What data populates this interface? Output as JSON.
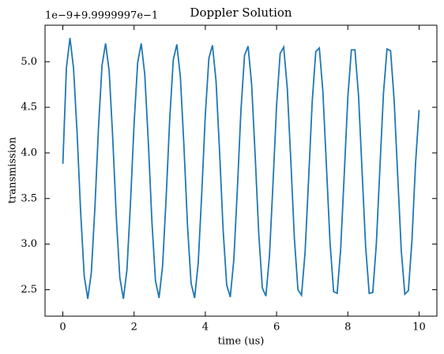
{
  "chart_data": {
    "type": "line",
    "title": "Doppler Solution",
    "x_label": "time (us)",
    "y_label": "transmission",
    "offset_text": "1e−9+9.9999997e−1",
    "color": "#1f77b4",
    "x": [
      0,
      0.1,
      0.2,
      0.3,
      0.4,
      0.5,
      0.6,
      0.7,
      0.8,
      0.9,
      1,
      1.1,
      1.2,
      1.3,
      1.4,
      1.5,
      1.6,
      1.7,
      1.8,
      1.9,
      2,
      2.1,
      2.2,
      2.3,
      2.4,
      2.5,
      2.6,
      2.7,
      2.8,
      2.9,
      3,
      3.1,
      3.2,
      3.3,
      3.4,
      3.5,
      3.6,
      3.7,
      3.8,
      3.9,
      4,
      4.1,
      4.2,
      4.3,
      4.4,
      4.5,
      4.6,
      4.7,
      4.8,
      4.9,
      5,
      5.1,
      5.2,
      5.3,
      5.4,
      5.5,
      5.6,
      5.7,
      5.8,
      5.9,
      6,
      6.1,
      6.2,
      6.3,
      6.4,
      6.5,
      6.6,
      6.7,
      6.8,
      6.9,
      7,
      7.1,
      7.2,
      7.3,
      7.4,
      7.5,
      7.6,
      7.7,
      7.8,
      7.9,
      8,
      8.1,
      8.2,
      8.3,
      8.4,
      8.5,
      8.6,
      8.7,
      8.8,
      8.9,
      9,
      9.1,
      9.2,
      9.3,
      9.4,
      9.5,
      9.6,
      9.7,
      9.8,
      9.9,
      10
    ],
    "values": [
      3.88,
      4.93,
      5.26,
      4.93,
      4.22,
      3.35,
      2.65,
      2.4,
      2.69,
      3.4,
      4.27,
      4.96,
      5.2,
      4.9,
      4.17,
      3.3,
      2.63,
      2.4,
      2.72,
      3.46,
      4.32,
      4.99,
      5.2,
      4.86,
      4.12,
      3.25,
      2.6,
      2.41,
      2.76,
      3.51,
      4.37,
      5.02,
      5.19,
      4.83,
      4.07,
      3.2,
      2.57,
      2.41,
      2.79,
      3.56,
      4.42,
      5.04,
      5.18,
      4.79,
      4.01,
      3.15,
      2.55,
      2.42,
      2.83,
      3.61,
      4.47,
      5.07,
      5.17,
      4.75,
      3.96,
      3.11,
      2.52,
      2.43,
      2.87,
      3.67,
      4.52,
      5.09,
      5.16,
      4.71,
      3.91,
      3.06,
      2.5,
      2.44,
      2.91,
      3.72,
      4.56,
      5.11,
      5.15,
      4.67,
      3.85,
      3.02,
      2.48,
      2.46,
      2.95,
      3.77,
      4.61,
      5.13,
      5.13,
      4.63,
      3.8,
      2.97,
      2.46,
      2.47,
      3.0,
      3.83,
      4.65,
      5.14,
      5.12,
      4.58,
      3.75,
      2.93,
      2.45,
      2.49,
      3.04,
      3.88,
      4.47
    ],
    "xlim": [
      -0.5,
      10.5
    ],
    "ylim": [
      2.21,
      5.4
    ],
    "xticks": [
      0,
      2,
      4,
      6,
      8,
      10
    ],
    "yticks": [
      2.5,
      {
        "value": 3,
        "label": "3.0"
      },
      3.5,
      {
        "value": 4,
        "label": "4.0"
      },
      4.5,
      {
        "value": 5,
        "label": "5.0"
      }
    ]
  }
}
